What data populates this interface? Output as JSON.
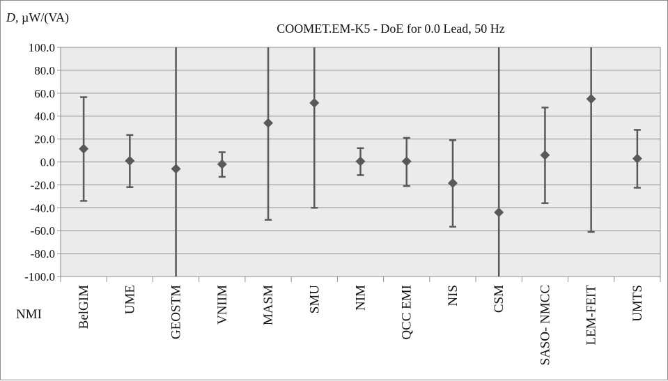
{
  "chart_data": {
    "type": "scatter",
    "title": "COOMET.EM-K5 - DoE for 0.0 Lead, 50 Hz",
    "ylabel_var": "D,",
    "ylabel_unit": "µW/(VA)",
    "xlabel": "NMI",
    "ylim": [
      -100,
      100
    ],
    "yticks": [
      "100.0",
      "80.0",
      "60.0",
      "40.0",
      "20.0",
      "0.0",
      "-20.0",
      "-40.0",
      "-60.0",
      "-80.0",
      "-100.0"
    ],
    "ytick_values": [
      100,
      80,
      60,
      40,
      20,
      0,
      -20,
      -40,
      -60,
      -80,
      -100
    ],
    "grid": true,
    "legend": "none",
    "marker": "diamond",
    "color": "#595959",
    "plot_background": "#ebebeb",
    "categories": [
      "BelGIM",
      "UME",
      "GEOSTM",
      "VNIIM",
      "MASM",
      "SMU",
      "NIM",
      "QCC EMI",
      "NIS",
      "CSM",
      "SASO- NMCC",
      "LEM-FEIT",
      "UMTS"
    ],
    "values": [
      11.5,
      1.0,
      -6.0,
      -2.0,
      34.0,
      51.5,
      0.5,
      0.5,
      -18.5,
      -44.0,
      6.0,
      55.0,
      3.0
    ],
    "err_low": [
      -34.0,
      -22.0,
      -100.0,
      -13.0,
      -50.5,
      -40.0,
      -11.5,
      -21.0,
      -56.5,
      -100.0,
      -36.0,
      -61.0,
      -22.5
    ],
    "err_high": [
      56.5,
      23.5,
      100.0,
      8.5,
      100.0,
      100.0,
      12.0,
      21.0,
      19.0,
      100.0,
      47.5,
      100.0,
      28.0
    ]
  }
}
